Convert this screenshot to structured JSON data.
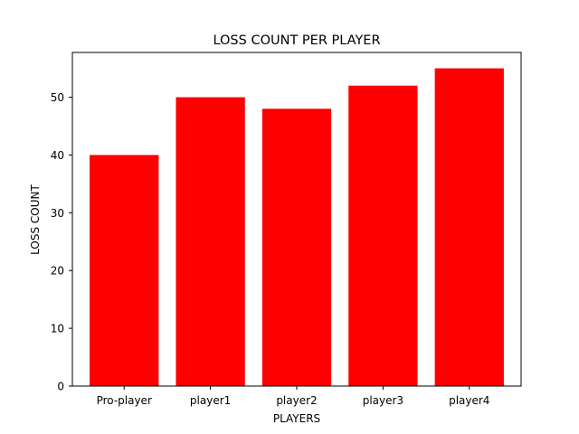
{
  "chart_data": {
    "type": "bar",
    "title": "LOSS COUNT PER PLAYER",
    "xlabel": "PLAYERS",
    "ylabel": "LOSS COUNT",
    "categories": [
      "Pro-player",
      "player1",
      "player2",
      "player3",
      "player4"
    ],
    "values": [
      40,
      50,
      48,
      52,
      55
    ],
    "yticks": [
      0,
      10,
      20,
      30,
      40,
      50
    ],
    "ylim": [
      0,
      57.75
    ],
    "bar_color": "#ff0000",
    "grid": false,
    "legend": "none"
  }
}
